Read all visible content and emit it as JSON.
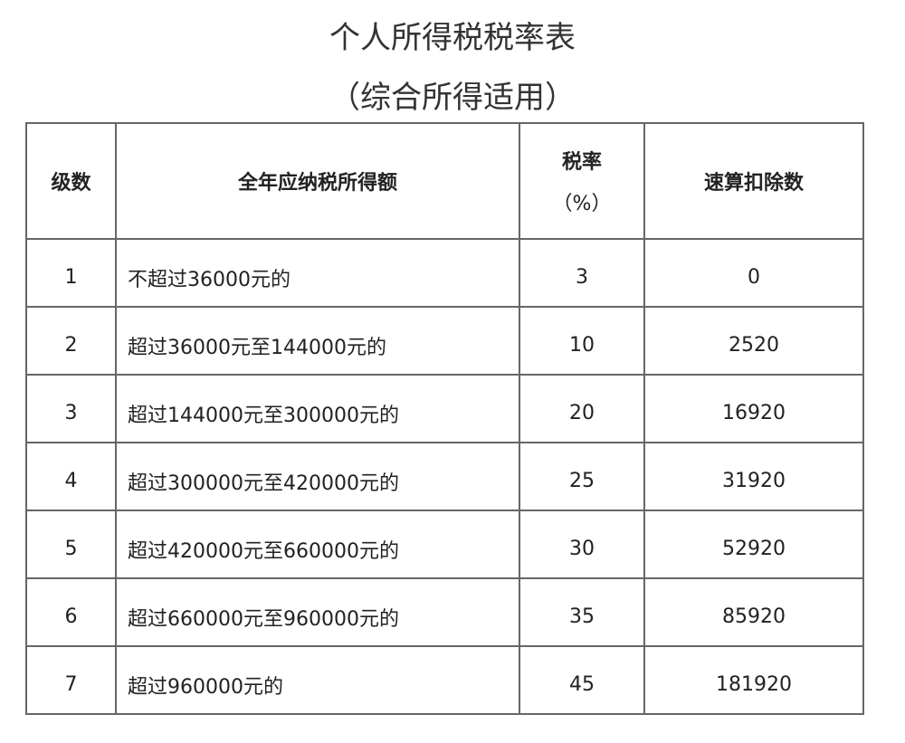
{
  "title": "个人所得税税率表",
  "subtitle": "（综合所得适用）",
  "table": {
    "headers": {
      "level": "级数",
      "income": "全年应纳税所得额",
      "rate": "税率",
      "rate_unit": "（%）",
      "deduction": "速算扣除数"
    },
    "rows": [
      {
        "level": "1",
        "income": "不超过36000元的",
        "rate": "3",
        "deduction": "0"
      },
      {
        "level": "2",
        "income": "超过36000元至144000元的",
        "rate": "10",
        "deduction": "2520"
      },
      {
        "level": "3",
        "income": "超过144000元至300000元的",
        "rate": "20",
        "deduction": "16920"
      },
      {
        "level": "4",
        "income": "超过300000元至420000元的",
        "rate": "25",
        "deduction": "31920"
      },
      {
        "level": "5",
        "income": "超过420000元至660000元的",
        "rate": "30",
        "deduction": "52920"
      },
      {
        "level": "6",
        "income": "超过660000元至960000元的",
        "rate": "35",
        "deduction": "85920"
      },
      {
        "level": "7",
        "income": "超过960000元的",
        "rate": "45",
        "deduction": "181920"
      }
    ]
  }
}
